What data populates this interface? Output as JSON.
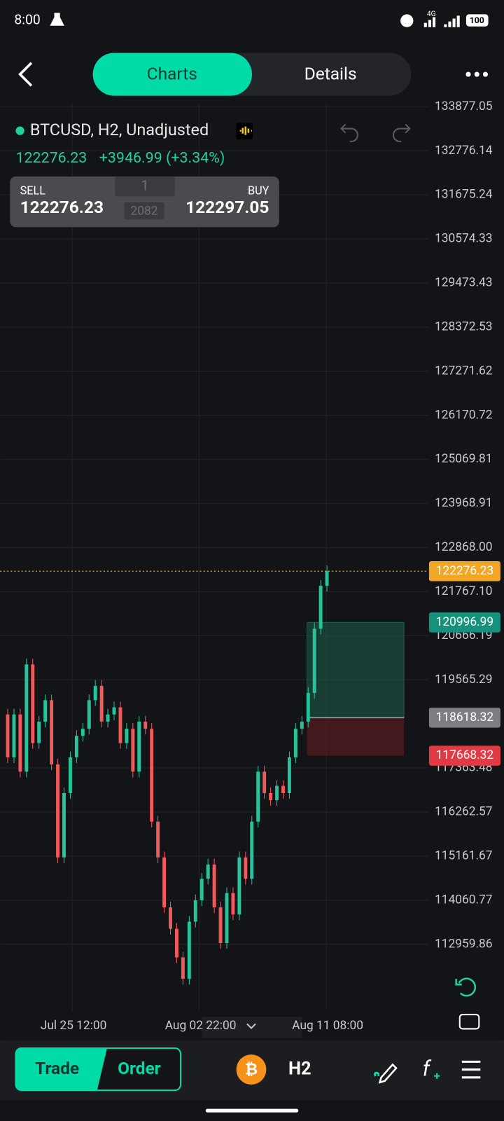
{
  "status": {
    "time": "8:00",
    "network": "4G",
    "battery": "100"
  },
  "tabs": [
    "Charts",
    "Details"
  ],
  "symbol": "BTCUSD, H2, Unadjusted",
  "quote": {
    "price": "122276.23",
    "change": "+3946.99 (+3.34%)"
  },
  "ticket": {
    "sell_label": "SELL",
    "sell": "122276.23",
    "buy_label": "BUY",
    "buy": "122297.05",
    "lots": "1",
    "spread": "2082"
  },
  "chart": {
    "type": "candlestick",
    "ylim": [
      111382,
      133954
    ],
    "yticks": [
      133877.05,
      132776.14,
      131675.24,
      130574.33,
      129473.43,
      128372.53,
      127271.62,
      126170.72,
      125069.81,
      123968.91,
      {
        "value": 122868,
        "label": "122868.00"
      },
      {
        "value": 121767.1,
        "label": "121767.10"
      },
      120666.19,
      119565.29,
      117363.48,
      116262.57,
      115161.67,
      114060.77,
      112959.86
    ],
    "xticks": [
      "Jul 25 12:00",
      "Aug 02 22:00",
      "Aug 11 08:00"
    ],
    "closes": [
      118698,
      117627,
      118698,
      117270,
      119947,
      117984,
      118519,
      119055,
      117449,
      115129,
      116735,
      117627,
      118163,
      118341,
      119055,
      119412,
      118519,
      118698,
      118876,
      117984,
      118341,
      117270,
      118519,
      118341,
      116021,
      115129,
      113880,
      113345,
      112631,
      112096,
      113523,
      114059,
      114594,
      114951,
      113880,
      112988,
      114237,
      113702,
      115129,
      114594,
      116021,
      117270,
      116735,
      116557,
      116914,
      116735,
      117627,
      118341,
      118519,
      119234,
      120839,
      121910,
      122276.23
    ],
    "current_price": 122276.23,
    "position": {
      "take_profit": 120996.99,
      "entry": 118618.32,
      "stop_loss": 117668.32
    }
  },
  "bottom": {
    "trade": "Trade",
    "order": "Order",
    "timeframe": "H2"
  }
}
